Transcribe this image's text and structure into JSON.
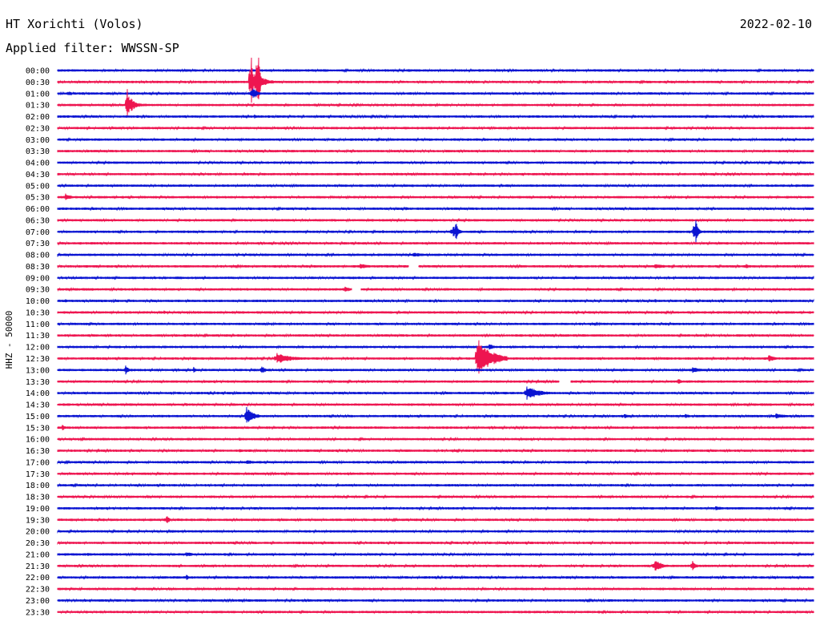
{
  "header": {
    "station": "HT Xorichti (Volos)",
    "date": "2022-02-10",
    "filter": "Applied filter: WWSSN-SP",
    "channel": "HHZ - 50000"
  },
  "colors": {
    "trace_blue": "#0a14d2",
    "trace_red": "#ee1550"
  },
  "chart_data": {
    "type": "helicorder",
    "title": "HT Xorichti (Volos)",
    "subtitle": "Applied filter: WWSSN-SP",
    "ylabel": "HHZ - 50000",
    "rows": [
      {
        "time": "00:00",
        "color": "blue"
      },
      {
        "time": "00:30",
        "color": "red"
      },
      {
        "time": "01:00",
        "color": "blue"
      },
      {
        "time": "01:30",
        "color": "red"
      },
      {
        "time": "02:00",
        "color": "blue"
      },
      {
        "time": "02:30",
        "color": "red"
      },
      {
        "time": "03:00",
        "color": "blue"
      },
      {
        "time": "03:30",
        "color": "red"
      },
      {
        "time": "04:00",
        "color": "blue"
      },
      {
        "time": "04:30",
        "color": "red"
      },
      {
        "time": "05:00",
        "color": "blue"
      },
      {
        "time": "05:30",
        "color": "red"
      },
      {
        "time": "06:00",
        "color": "blue"
      },
      {
        "time": "06:30",
        "color": "red"
      },
      {
        "time": "07:00",
        "color": "blue"
      },
      {
        "time": "07:30",
        "color": "red"
      },
      {
        "time": "08:00",
        "color": "blue"
      },
      {
        "time": "08:30",
        "color": "red"
      },
      {
        "time": "09:00",
        "color": "blue"
      },
      {
        "time": "09:30",
        "color": "red"
      },
      {
        "time": "10:00",
        "color": "blue"
      },
      {
        "time": "10:30",
        "color": "red"
      },
      {
        "time": "11:00",
        "color": "blue"
      },
      {
        "time": "11:30",
        "color": "red"
      },
      {
        "time": "12:00",
        "color": "blue"
      },
      {
        "time": "12:30",
        "color": "red"
      },
      {
        "time": "13:00",
        "color": "blue"
      },
      {
        "time": "13:30",
        "color": "red"
      },
      {
        "time": "14:00",
        "color": "blue"
      },
      {
        "time": "14:30",
        "color": "red"
      },
      {
        "time": "15:00",
        "color": "blue"
      },
      {
        "time": "15:30",
        "color": "red"
      },
      {
        "time": "16:00",
        "color": "red"
      },
      {
        "time": "16:30",
        "color": "red"
      },
      {
        "time": "17:00",
        "color": "blue"
      },
      {
        "time": "17:30",
        "color": "red"
      },
      {
        "time": "18:00",
        "color": "blue"
      },
      {
        "time": "18:30",
        "color": "red"
      },
      {
        "time": "19:00",
        "color": "blue"
      },
      {
        "time": "19:30",
        "color": "red"
      },
      {
        "time": "20:00",
        "color": "blue"
      },
      {
        "time": "20:30",
        "color": "red"
      },
      {
        "time": "21:00",
        "color": "blue"
      },
      {
        "time": "21:30",
        "color": "red"
      },
      {
        "time": "22:00",
        "color": "blue"
      },
      {
        "time": "22:30",
        "color": "red"
      },
      {
        "time": "23:00",
        "color": "blue"
      },
      {
        "time": "23:30",
        "color": "red"
      }
    ],
    "events": [
      {
        "row": 0,
        "minute": 24,
        "amp": 1,
        "dur": 2
      },
      {
        "row": 1,
        "minute": 7,
        "amp": 1,
        "dur": 2
      },
      {
        "row": 1,
        "minute": 26,
        "amp": 12,
        "dur": 3
      },
      {
        "row": 1,
        "minute": 25.6,
        "amp": 38,
        "dur": 0.4
      },
      {
        "row": 1,
        "minute": 26.5,
        "amp": 55,
        "dur": 0.5
      },
      {
        "row": 2,
        "minute": 1.5,
        "amp": 5,
        "dur": 0.6
      },
      {
        "row": 2,
        "minute": 25.8,
        "amp": 10,
        "dur": 1.2
      },
      {
        "row": 3,
        "minute": 9.4,
        "amp": 12,
        "dur": 2
      },
      {
        "row": 3,
        "minute": 9.2,
        "amp": 22,
        "dur": 0.4
      },
      {
        "row": 4,
        "minute": 26,
        "amp": 3,
        "dur": 1
      },
      {
        "row": 6,
        "minute": 50,
        "amp": 1.5,
        "dur": 2
      },
      {
        "row": 8,
        "minute": 37,
        "amp": 1.5,
        "dur": 2
      },
      {
        "row": 10,
        "minute": 81,
        "amp": 1.5,
        "dur": 6
      },
      {
        "row": 11,
        "minute": 1,
        "amp": 5,
        "dur": 2
      },
      {
        "row": 12,
        "minute": 46,
        "amp": 3,
        "dur": 1
      },
      {
        "row": 14,
        "minute": 52,
        "amp": 3,
        "dur": 4
      },
      {
        "row": 14,
        "minute": 52.6,
        "amp": 16,
        "dur": 0.8
      },
      {
        "row": 14,
        "minute": 84,
        "amp": 3,
        "dur": 3
      },
      {
        "row": 14,
        "minute": 84.4,
        "amp": 18,
        "dur": 0.8
      },
      {
        "row": 14,
        "minute": 19,
        "amp": 2,
        "dur": 2
      },
      {
        "row": 14,
        "minute": 43,
        "amp": 2,
        "dur": 2
      },
      {
        "row": 16,
        "minute": 47,
        "amp": 3,
        "dur": 6
      },
      {
        "row": 17,
        "minute": 40,
        "amp": 4,
        "dur": 3
      },
      {
        "row": 17,
        "minute": 79,
        "amp": 3,
        "dur": 5
      },
      {
        "row": 17,
        "minute": 91,
        "amp": 5,
        "dur": 1
      },
      {
        "row": 19,
        "minute": 38,
        "amp": 4,
        "dur": 2
      },
      {
        "row": 19,
        "minute": 87,
        "amp": 3,
        "dur": 1
      },
      {
        "row": 20,
        "minute": 1,
        "amp": 3,
        "dur": 1
      },
      {
        "row": 20,
        "minute": 79,
        "amp": 3,
        "dur": 1
      },
      {
        "row": 21,
        "minute": 14,
        "amp": 3,
        "dur": 1
      },
      {
        "row": 22,
        "minute": 19,
        "amp": 2,
        "dur": 1
      },
      {
        "row": 24,
        "minute": 57,
        "amp": 5,
        "dur": 2
      },
      {
        "row": 24,
        "minute": 73,
        "amp": 2,
        "dur": 3
      },
      {
        "row": 25,
        "minute": 29,
        "amp": 7,
        "dur": 5
      },
      {
        "row": 25,
        "minute": 55.5,
        "amp": 26,
        "dur": 4
      },
      {
        "row": 25,
        "minute": 94,
        "amp": 5,
        "dur": 2
      },
      {
        "row": 26,
        "minute": 9,
        "amp": 6,
        "dur": 1
      },
      {
        "row": 26,
        "minute": 18,
        "amp": 4,
        "dur": 1
      },
      {
        "row": 26,
        "minute": 27,
        "amp": 6,
        "dur": 1
      },
      {
        "row": 26,
        "minute": 84,
        "amp": 4,
        "dur": 3
      },
      {
        "row": 27,
        "minute": 82,
        "amp": 5,
        "dur": 1
      },
      {
        "row": 28,
        "minute": 62,
        "amp": 9,
        "dur": 4
      },
      {
        "row": 29,
        "minute": 17,
        "amp": 2,
        "dur": 3
      },
      {
        "row": 30,
        "minute": 25.2,
        "amp": 10,
        "dur": 2
      },
      {
        "row": 30,
        "minute": 25,
        "amp": 14,
        "dur": 0.4
      },
      {
        "row": 30,
        "minute": 75,
        "amp": 3,
        "dur": 2
      },
      {
        "row": 30,
        "minute": 83,
        "amp": 3,
        "dur": 2
      },
      {
        "row": 30,
        "minute": 95,
        "amp": 4,
        "dur": 3
      },
      {
        "row": 31,
        "minute": 0.6,
        "amp": 4,
        "dur": 1
      },
      {
        "row": 32,
        "minute": 6,
        "amp": 2,
        "dur": 3
      },
      {
        "row": 32,
        "minute": 24,
        "amp": 2,
        "dur": 2
      },
      {
        "row": 33,
        "minute": 24,
        "amp": 2,
        "dur": 3
      },
      {
        "row": 34,
        "minute": 17,
        "amp": 2,
        "dur": 3
      },
      {
        "row": 34,
        "minute": 25,
        "amp": 3,
        "dur": 3
      },
      {
        "row": 34,
        "minute": 59,
        "amp": 2,
        "dur": 2
      },
      {
        "row": 36,
        "minute": 7,
        "amp": 2,
        "dur": 3
      },
      {
        "row": 36,
        "minute": 38,
        "amp": 1.5,
        "dur": 4
      },
      {
        "row": 38,
        "minute": 87,
        "amp": 3,
        "dur": 3
      },
      {
        "row": 39,
        "minute": 14.4,
        "amp": 6,
        "dur": 1
      },
      {
        "row": 40,
        "minute": 51,
        "amp": 2,
        "dur": 1
      },
      {
        "row": 42,
        "minute": 4,
        "amp": 2,
        "dur": 3
      },
      {
        "row": 42,
        "minute": 17,
        "amp": 3,
        "dur": 3
      },
      {
        "row": 43,
        "minute": 79,
        "amp": 9,
        "dur": 2
      },
      {
        "row": 43,
        "minute": 84,
        "amp": 7,
        "dur": 1
      },
      {
        "row": 44,
        "minute": 17,
        "amp": 4,
        "dur": 1
      },
      {
        "row": 45,
        "minute": 51,
        "amp": 2,
        "dur": 1
      },
      {
        "row": 46,
        "minute": 55,
        "amp": 1.5,
        "dur": 1
      },
      {
        "row": 47,
        "minute": 57,
        "amp": 2,
        "dur": 1
      }
    ],
    "gaps": [
      {
        "row": 17,
        "minute": 46.5,
        "dur": 1.2
      },
      {
        "row": 19,
        "minute": 38.9,
        "dur": 1.2
      },
      {
        "row": 27,
        "minute": 66.4,
        "dur": 1.5
      }
    ]
  }
}
